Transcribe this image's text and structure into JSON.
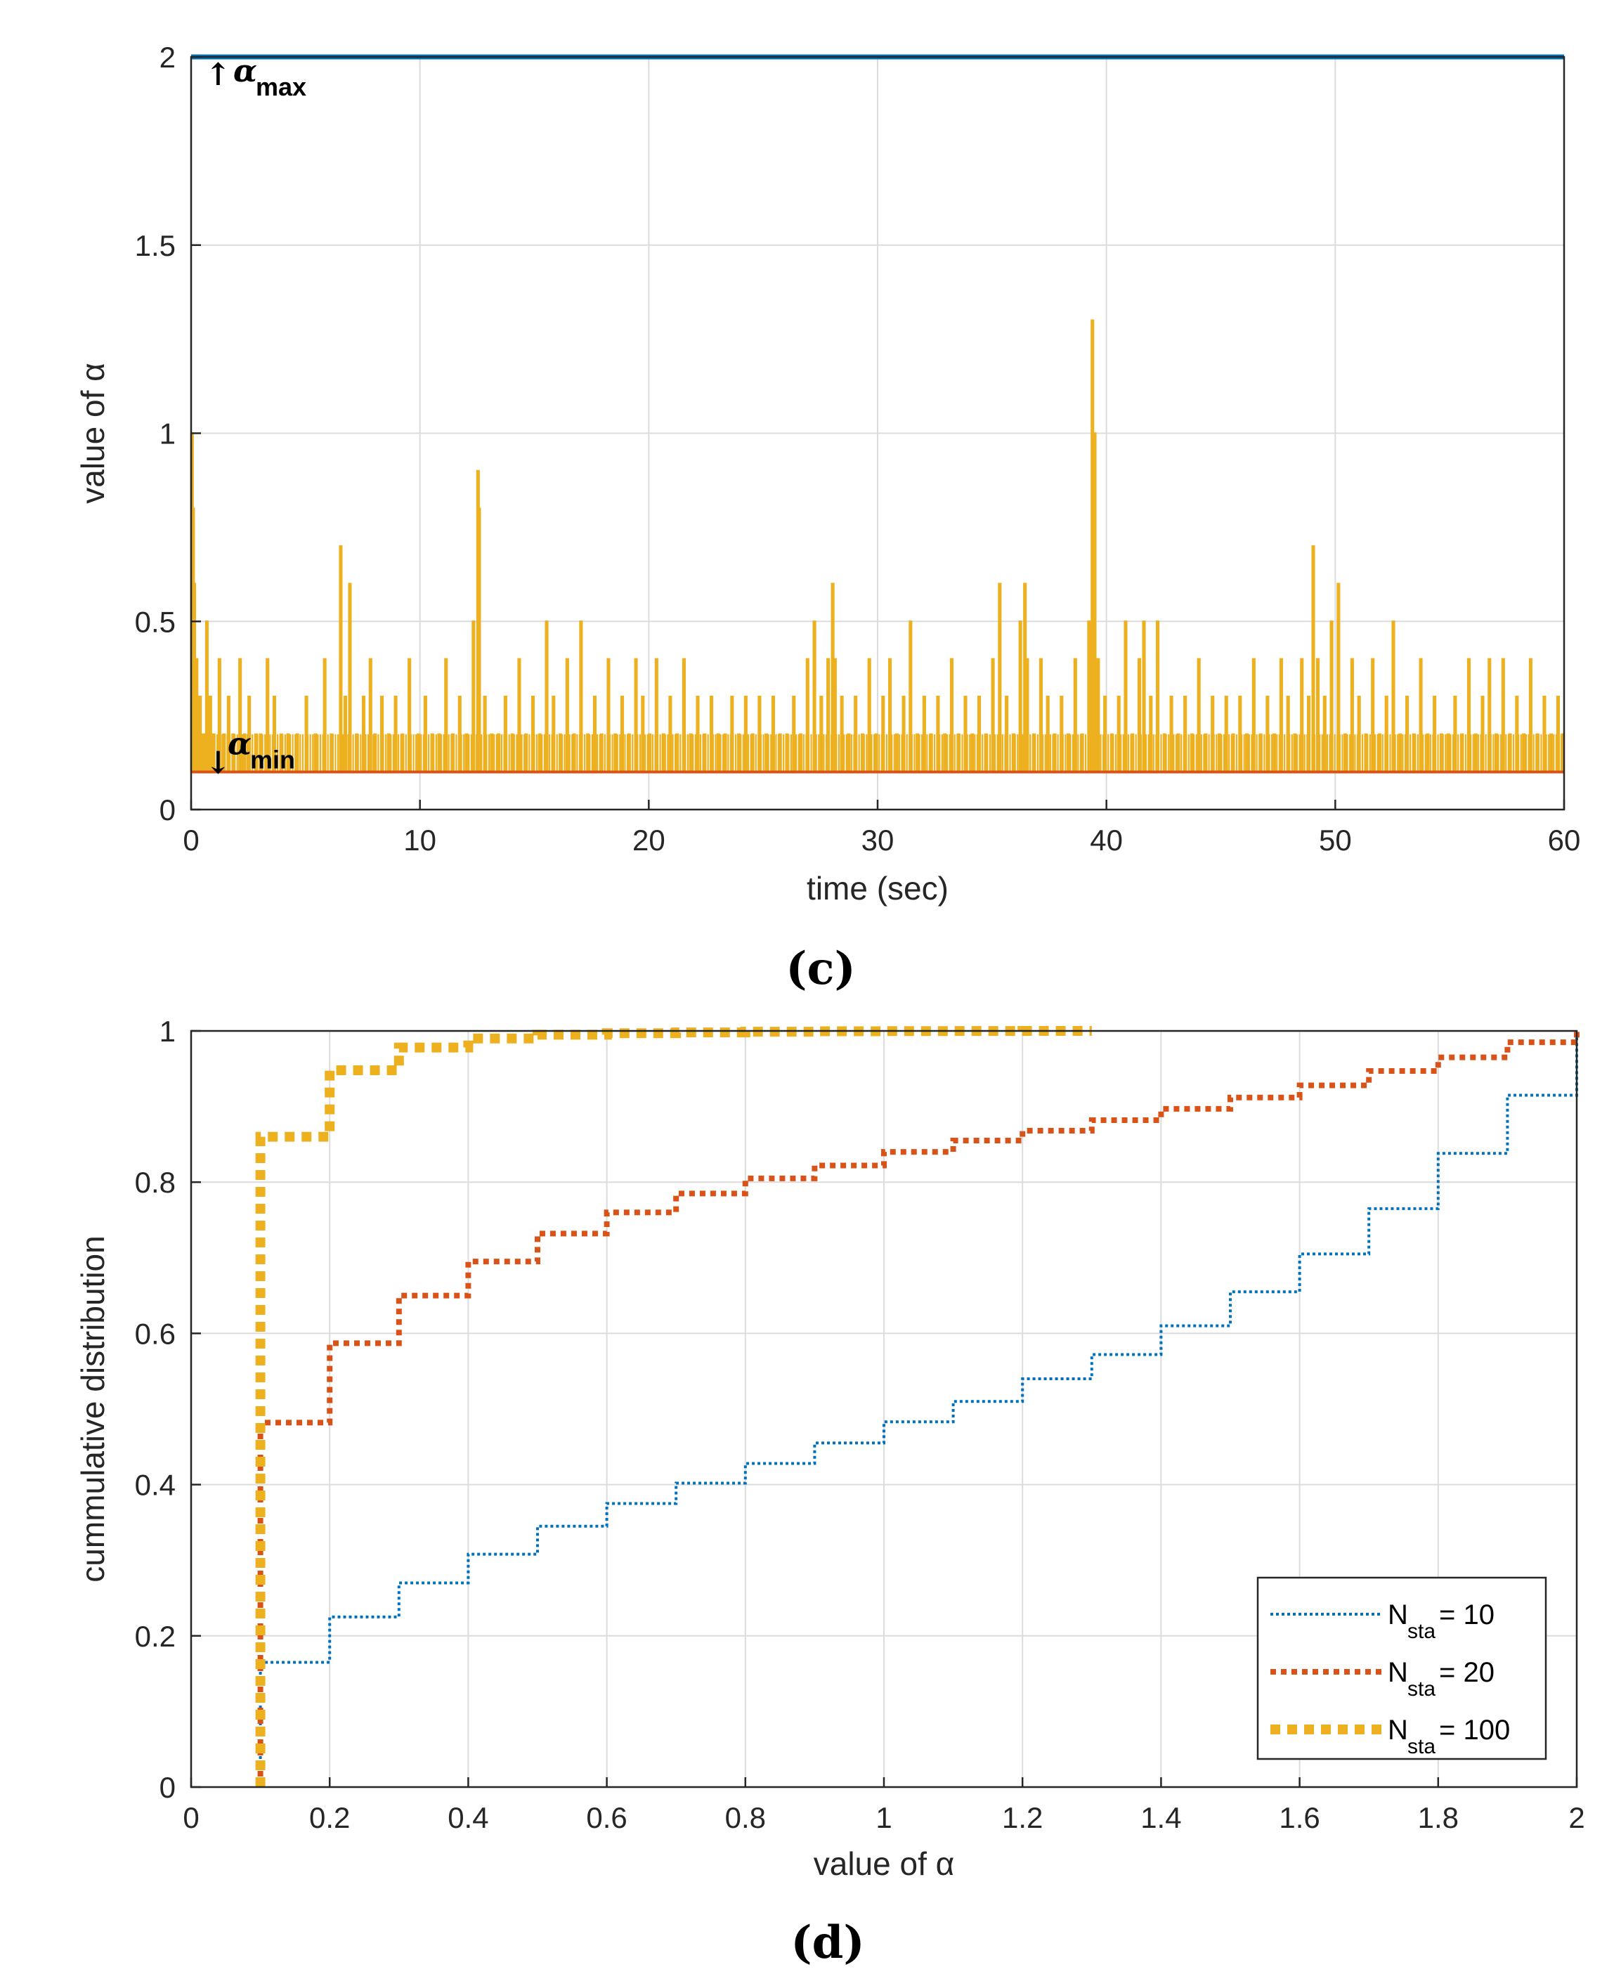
{
  "chart_data": [
    {
      "id": "c",
      "type": "line",
      "caption": "(c)",
      "xlabel": "time (sec)",
      "ylabel": "value of α",
      "xlim": [
        0,
        60
      ],
      "ylim": [
        0,
        2
      ],
      "xticks": [
        0,
        10,
        20,
        30,
        40,
        50,
        60
      ],
      "yticks": [
        0,
        0.5,
        1,
        1.5,
        2
      ],
      "ytick_labels": [
        "0",
        "0.5",
        "1",
        "1.5",
        "2"
      ],
      "grid": true,
      "annotations": [
        {
          "arrow": "↑",
          "symbol": "α",
          "sub": "max",
          "value": 2
        },
        {
          "arrow": "↓",
          "symbol": "α",
          "sub": "min",
          "value": 0.1
        }
      ],
      "series": [
        {
          "name": "alpha_max",
          "color": "#0072BD",
          "constant": 2
        },
        {
          "name": "alpha_min",
          "color": "#D95319",
          "constant": 0.1
        },
        {
          "name": "alpha",
          "color": "#EDB120",
          "baseline": 0.1,
          "spikes": [
            [
              0.0,
              1.0
            ],
            [
              0.05,
              0.8
            ],
            [
              0.1,
              0.6
            ],
            [
              0.2,
              0.4
            ],
            [
              0.35,
              0.3
            ],
            [
              0.5,
              0.2
            ],
            [
              0.65,
              0.5
            ],
            [
              0.8,
              0.3
            ],
            [
              0.95,
              0.2
            ],
            [
              1.2,
              0.4
            ],
            [
              1.4,
              0.2
            ],
            [
              1.6,
              0.3
            ],
            [
              1.8,
              0.2
            ],
            [
              2.1,
              0.4
            ],
            [
              2.3,
              0.2
            ],
            [
              2.5,
              0.3
            ],
            [
              2.8,
              0.2
            ],
            [
              3.0,
              0.2
            ],
            [
              3.3,
              0.4
            ],
            [
              3.6,
              0.3
            ],
            [
              3.9,
              0.2
            ],
            [
              4.2,
              0.2
            ],
            [
              4.6,
              0.2
            ],
            [
              5.0,
              0.3
            ],
            [
              5.4,
              0.2
            ],
            [
              5.8,
              0.4
            ],
            [
              6.1,
              0.2
            ],
            [
              6.5,
              0.7
            ],
            [
              6.7,
              0.3
            ],
            [
              6.9,
              0.6
            ],
            [
              7.2,
              0.2
            ],
            [
              7.5,
              0.3
            ],
            [
              7.8,
              0.4
            ],
            [
              8.0,
              0.2
            ],
            [
              8.3,
              0.3
            ],
            [
              8.6,
              0.2
            ],
            [
              8.9,
              0.3
            ],
            [
              9.2,
              0.2
            ],
            [
              9.5,
              0.4
            ],
            [
              9.9,
              0.2
            ],
            [
              10.2,
              0.3
            ],
            [
              10.5,
              0.2
            ],
            [
              10.8,
              0.2
            ],
            [
              11.1,
              0.4
            ],
            [
              11.4,
              0.2
            ],
            [
              11.7,
              0.3
            ],
            [
              12.0,
              0.2
            ],
            [
              12.3,
              0.5
            ],
            [
              12.5,
              0.9
            ],
            [
              12.55,
              0.8
            ],
            [
              12.8,
              0.3
            ],
            [
              13.1,
              0.2
            ],
            [
              13.4,
              0.2
            ],
            [
              13.7,
              0.3
            ],
            [
              14.0,
              0.2
            ],
            [
              14.3,
              0.4
            ],
            [
              14.6,
              0.2
            ],
            [
              14.9,
              0.3
            ],
            [
              15.2,
              0.2
            ],
            [
              15.5,
              0.5
            ],
            [
              15.8,
              0.3
            ],
            [
              16.1,
              0.2
            ],
            [
              16.4,
              0.4
            ],
            [
              16.7,
              0.2
            ],
            [
              17.0,
              0.5
            ],
            [
              17.3,
              0.2
            ],
            [
              17.6,
              0.3
            ],
            [
              17.9,
              0.2
            ],
            [
              18.2,
              0.4
            ],
            [
              18.5,
              0.2
            ],
            [
              18.8,
              0.3
            ],
            [
              19.1,
              0.2
            ],
            [
              19.4,
              0.4
            ],
            [
              19.7,
              0.3
            ],
            [
              20.0,
              0.2
            ],
            [
              20.3,
              0.4
            ],
            [
              20.6,
              0.2
            ],
            [
              20.9,
              0.3
            ],
            [
              21.2,
              0.2
            ],
            [
              21.5,
              0.4
            ],
            [
              21.8,
              0.2
            ],
            [
              22.1,
              0.3
            ],
            [
              22.4,
              0.2
            ],
            [
              22.7,
              0.3
            ],
            [
              23.0,
              0.2
            ],
            [
              23.3,
              0.2
            ],
            [
              23.6,
              0.3
            ],
            [
              23.9,
              0.2
            ],
            [
              24.2,
              0.3
            ],
            [
              24.5,
              0.2
            ],
            [
              24.8,
              0.3
            ],
            [
              25.1,
              0.2
            ],
            [
              25.4,
              0.3
            ],
            [
              25.7,
              0.2
            ],
            [
              26.0,
              0.2
            ],
            [
              26.3,
              0.3
            ],
            [
              26.6,
              0.2
            ],
            [
              26.9,
              0.4
            ],
            [
              27.2,
              0.5
            ],
            [
              27.5,
              0.3
            ],
            [
              27.8,
              0.4
            ],
            [
              28.0,
              0.6
            ],
            [
              28.1,
              0.4
            ],
            [
              28.4,
              0.3
            ],
            [
              28.7,
              0.2
            ],
            [
              29.0,
              0.3
            ],
            [
              29.3,
              0.2
            ],
            [
              29.6,
              0.4
            ],
            [
              29.9,
              0.2
            ],
            [
              30.2,
              0.3
            ],
            [
              30.5,
              0.4
            ],
            [
              30.8,
              0.2
            ],
            [
              31.1,
              0.3
            ],
            [
              31.4,
              0.5
            ],
            [
              31.7,
              0.2
            ],
            [
              32.0,
              0.3
            ],
            [
              32.3,
              0.2
            ],
            [
              32.6,
              0.3
            ],
            [
              32.9,
              0.2
            ],
            [
              33.2,
              0.4
            ],
            [
              33.5,
              0.2
            ],
            [
              33.8,
              0.3
            ],
            [
              34.1,
              0.2
            ],
            [
              34.4,
              0.3
            ],
            [
              34.7,
              0.2
            ],
            [
              35.0,
              0.4
            ],
            [
              35.3,
              0.6
            ],
            [
              35.6,
              0.3
            ],
            [
              35.9,
              0.2
            ],
            [
              36.2,
              0.5
            ],
            [
              36.4,
              0.6
            ],
            [
              36.5,
              0.4
            ],
            [
              36.8,
              0.2
            ],
            [
              37.1,
              0.4
            ],
            [
              37.4,
              0.3
            ],
            [
              37.7,
              0.2
            ],
            [
              38.0,
              0.3
            ],
            [
              38.3,
              0.2
            ],
            [
              38.6,
              0.4
            ],
            [
              38.9,
              0.2
            ],
            [
              39.2,
              0.5
            ],
            [
              39.35,
              1.3
            ],
            [
              39.45,
              1.0
            ],
            [
              39.6,
              0.4
            ],
            [
              39.9,
              0.3
            ],
            [
              40.2,
              0.2
            ],
            [
              40.5,
              0.3
            ],
            [
              40.8,
              0.5
            ],
            [
              41.1,
              0.2
            ],
            [
              41.4,
              0.4
            ],
            [
              41.6,
              0.5
            ],
            [
              41.9,
              0.3
            ],
            [
              42.2,
              0.5
            ],
            [
              42.5,
              0.2
            ],
            [
              42.8,
              0.3
            ],
            [
              43.1,
              0.2
            ],
            [
              43.4,
              0.3
            ],
            [
              43.7,
              0.2
            ],
            [
              44.0,
              0.4
            ],
            [
              44.3,
              0.2
            ],
            [
              44.6,
              0.3
            ],
            [
              44.9,
              0.2
            ],
            [
              45.2,
              0.3
            ],
            [
              45.5,
              0.2
            ],
            [
              45.8,
              0.3
            ],
            [
              46.1,
              0.2
            ],
            [
              46.4,
              0.4
            ],
            [
              46.7,
              0.2
            ],
            [
              47.0,
              0.3
            ],
            [
              47.3,
              0.2
            ],
            [
              47.6,
              0.4
            ],
            [
              47.9,
              0.3
            ],
            [
              48.2,
              0.2
            ],
            [
              48.5,
              0.4
            ],
            [
              48.8,
              0.3
            ],
            [
              49.0,
              0.7
            ],
            [
              49.2,
              0.4
            ],
            [
              49.5,
              0.3
            ],
            [
              49.8,
              0.5
            ],
            [
              50.1,
              0.6
            ],
            [
              50.4,
              0.2
            ],
            [
              50.7,
              0.4
            ],
            [
              51.0,
              0.3
            ],
            [
              51.3,
              0.2
            ],
            [
              51.6,
              0.4
            ],
            [
              51.9,
              0.2
            ],
            [
              52.2,
              0.3
            ],
            [
              52.5,
              0.5
            ],
            [
              52.8,
              0.2
            ],
            [
              53.1,
              0.3
            ],
            [
              53.4,
              0.2
            ],
            [
              53.7,
              0.4
            ],
            [
              54.0,
              0.2
            ],
            [
              54.3,
              0.3
            ],
            [
              54.6,
              0.2
            ],
            [
              54.9,
              0.2
            ],
            [
              55.2,
              0.3
            ],
            [
              55.5,
              0.2
            ],
            [
              55.8,
              0.4
            ],
            [
              56.1,
              0.2
            ],
            [
              56.4,
              0.3
            ],
            [
              56.7,
              0.4
            ],
            [
              57.0,
              0.2
            ],
            [
              57.3,
              0.4
            ],
            [
              57.6,
              0.2
            ],
            [
              57.9,
              0.3
            ],
            [
              58.2,
              0.2
            ],
            [
              58.5,
              0.4
            ],
            [
              58.8,
              0.2
            ],
            [
              59.1,
              0.3
            ],
            [
              59.4,
              0.2
            ],
            [
              59.7,
              0.3
            ],
            [
              59.9,
              0.2
            ]
          ]
        }
      ]
    },
    {
      "id": "d",
      "type": "line",
      "step": true,
      "caption": "(d)",
      "xlabel": "value of α",
      "ylabel": "cummulative distribution",
      "xlim": [
        0,
        2
      ],
      "ylim": [
        0,
        1
      ],
      "xticks": [
        0,
        0.2,
        0.4,
        0.6,
        0.8,
        1,
        1.2,
        1.4,
        1.6,
        1.8,
        2
      ],
      "xtick_labels": [
        "0",
        "0.2",
        "0.4",
        "0.6",
        "0.8",
        "1",
        "1.2",
        "1.4",
        "1.6",
        "1.8",
        "2"
      ],
      "yticks": [
        0,
        0.2,
        0.4,
        0.6,
        0.8,
        1
      ],
      "ytick_labels": [
        "0",
        "0.2",
        "0.4",
        "0.6",
        "0.8",
        "1"
      ],
      "grid": true,
      "legend": "bottom-right",
      "series": [
        {
          "name": "N",
          "sub": "sta",
          "label_rest": " = 10",
          "color": "#0072BD",
          "style": "thin",
          "x": [
            0.1,
            0.2,
            0.3,
            0.4,
            0.5,
            0.6,
            0.7,
            0.8,
            0.9,
            1.0,
            1.1,
            1.2,
            1.3,
            1.4,
            1.5,
            1.6,
            1.7,
            1.8,
            1.9,
            2.0
          ],
          "y": [
            0.165,
            0.225,
            0.27,
            0.308,
            0.345,
            0.375,
            0.402,
            0.428,
            0.455,
            0.483,
            0.51,
            0.54,
            0.572,
            0.61,
            0.655,
            0.705,
            0.765,
            0.838,
            0.915,
            1.0
          ]
        },
        {
          "name": "N",
          "sub": "sta",
          "label_rest": " = 20",
          "color": "#D95319",
          "style": "medium",
          "x": [
            0.1,
            0.2,
            0.3,
            0.4,
            0.5,
            0.6,
            0.7,
            0.8,
            0.9,
            1.0,
            1.1,
            1.2,
            1.3,
            1.4,
            1.5,
            1.6,
            1.7,
            1.8,
            1.9,
            2.0
          ],
          "y": [
            0.482,
            0.587,
            0.65,
            0.695,
            0.732,
            0.76,
            0.785,
            0.805,
            0.822,
            0.84,
            0.855,
            0.868,
            0.882,
            0.897,
            0.912,
            0.928,
            0.947,
            0.965,
            0.985,
            1.0
          ]
        },
        {
          "name": "N",
          "sub": "sta",
          "label_rest": " = 100",
          "color": "#EDB120",
          "style": "thick",
          "x": [
            0.1,
            0.2,
            0.3,
            0.4,
            0.5,
            0.6,
            0.7,
            0.8,
            0.9,
            1.0,
            1.1,
            1.2,
            1.3
          ],
          "y": [
            0.86,
            0.948,
            0.978,
            0.99,
            0.995,
            0.997,
            0.998,
            0.999,
            0.9995,
            0.9998,
            0.9999,
            1.0,
            1.0
          ]
        }
      ]
    }
  ]
}
